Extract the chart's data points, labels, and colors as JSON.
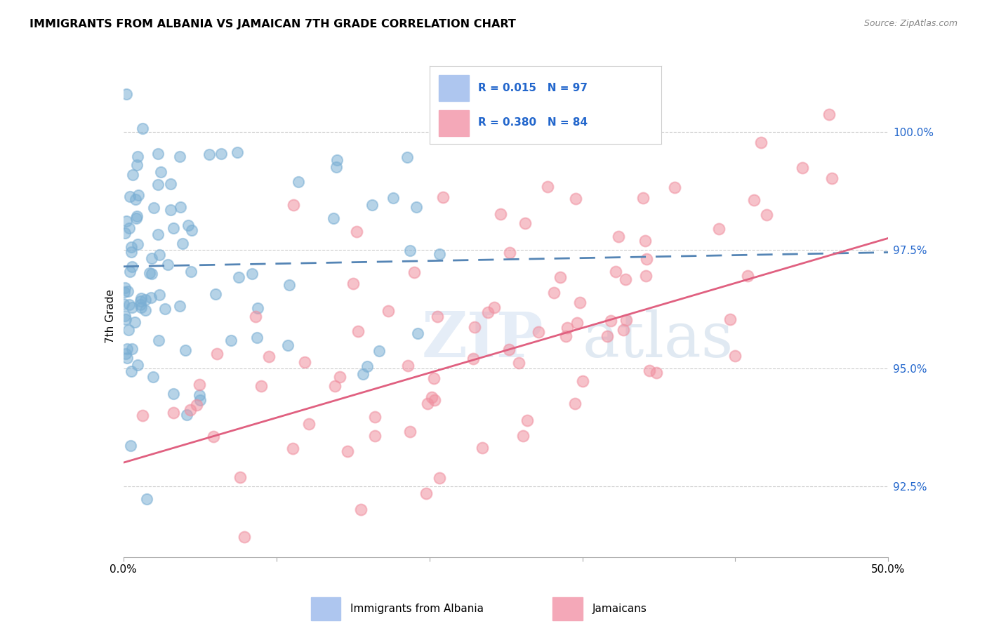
{
  "title": "IMMIGRANTS FROM ALBANIA VS JAMAICAN 7TH GRADE CORRELATION CHART",
  "source": "Source: ZipAtlas.com",
  "ylabel": "7th Grade",
  "yticks": [
    92.5,
    95.0,
    97.5,
    100.0
  ],
  "ytick_labels": [
    "92.5%",
    "95.0%",
    "97.5%",
    "100.0%"
  ],
  "xmin": 0.0,
  "xmax": 50.0,
  "ymin": 91.0,
  "ymax": 101.2,
  "albania_color": "#7bafd4",
  "jamaica_color": "#f090a0",
  "albania_N": 97,
  "jamaica_N": 84,
  "albania_trend_color": "#5585b5",
  "jamaica_trend_color": "#e06080",
  "alb_slope": 0.006,
  "alb_intercept": 97.15,
  "jam_slope": 0.095,
  "jam_intercept": 93.0,
  "albania_seed": 42,
  "jamaica_seed": 123,
  "legend_R_alb": "R = 0.015",
  "legend_N_alb": "N = 97",
  "legend_R_jam": "R = 0.380",
  "legend_N_jam": "N = 84",
  "legend_color_alb": "#aec6ef",
  "legend_color_jam": "#f4a8b8",
  "legend_text_color": "#2266cc"
}
